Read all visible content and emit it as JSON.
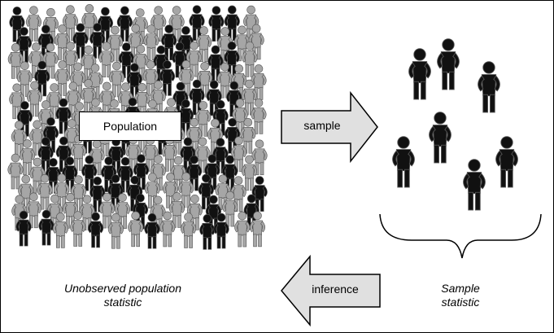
{
  "population_label": "Population",
  "sample_arrow_label": "sample",
  "inference_arrow_label": "inference",
  "population_caption": [
    "Unobserved population",
    "statistic"
  ],
  "sample_caption": [
    "Sample",
    "statistic"
  ],
  "colors": {
    "gray_figure": "#a6a6a6",
    "black_figure": "#111111",
    "arrow_fill": "#e0e0e0",
    "outline": "#000000"
  },
  "icons": [
    "person-figure-icon",
    "right-arrow-icon",
    "left-arrow-icon",
    "curly-brace-icon"
  ]
}
